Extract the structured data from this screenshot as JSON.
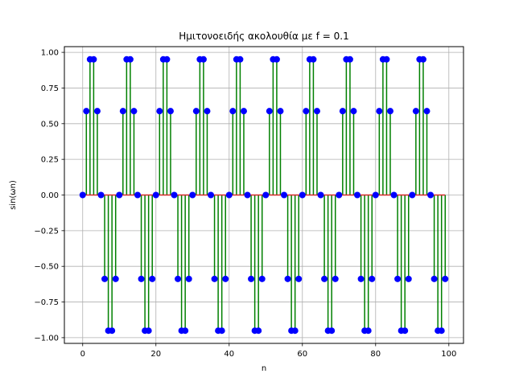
{
  "chart_data": {
    "type": "stem",
    "title": "Ημιτονοειδής ακολουθία με f = 0.1",
    "xlabel": "n",
    "ylabel": "sin(ωn)",
    "xlim": [
      -5,
      104
    ],
    "ylim": [
      -1.04,
      1.04
    ],
    "xticks": [
      0,
      20,
      40,
      60,
      80,
      100
    ],
    "xtick_labels": [
      "0",
      "20",
      "40",
      "60",
      "80",
      "100"
    ],
    "yticks": [
      -1.0,
      -0.75,
      -0.5,
      -0.25,
      0.0,
      0.25,
      0.5,
      0.75,
      1.0
    ],
    "ytick_labels": [
      "−1.00",
      "−0.75",
      "−0.50",
      "−0.25",
      "0.00",
      "0.25",
      "0.50",
      "0.75",
      "1.00"
    ],
    "grid": true,
    "frequency": 0.1,
    "n": [
      0,
      1,
      2,
      3,
      4,
      5,
      6,
      7,
      8,
      9,
      10,
      11,
      12,
      13,
      14,
      15,
      16,
      17,
      18,
      19,
      20,
      21,
      22,
      23,
      24,
      25,
      26,
      27,
      28,
      29,
      30,
      31,
      32,
      33,
      34,
      35,
      36,
      37,
      38,
      39,
      40,
      41,
      42,
      43,
      44,
      45,
      46,
      47,
      48,
      49,
      50,
      51,
      52,
      53,
      54,
      55,
      56,
      57,
      58,
      59,
      60,
      61,
      62,
      63,
      64,
      65,
      66,
      67,
      68,
      69,
      70,
      71,
      72,
      73,
      74,
      75,
      76,
      77,
      78,
      79,
      80,
      81,
      82,
      83,
      84,
      85,
      86,
      87,
      88,
      89,
      90,
      91,
      92,
      93,
      94,
      95,
      96,
      97,
      98,
      99
    ],
    "values": [
      0.0,
      0.588,
      0.951,
      0.951,
      0.588,
      0.0,
      -0.588,
      -0.951,
      -0.951,
      -0.588,
      0.0,
      0.588,
      0.951,
      0.951,
      0.588,
      0.0,
      -0.588,
      -0.951,
      -0.951,
      -0.588,
      0.0,
      0.588,
      0.951,
      0.951,
      0.588,
      0.0,
      -0.588,
      -0.951,
      -0.951,
      -0.588,
      0.0,
      0.588,
      0.951,
      0.951,
      0.588,
      0.0,
      -0.588,
      -0.951,
      -0.951,
      -0.588,
      0.0,
      0.588,
      0.951,
      0.951,
      0.588,
      0.0,
      -0.588,
      -0.951,
      -0.951,
      -0.588,
      0.0,
      0.588,
      0.951,
      0.951,
      0.588,
      0.0,
      -0.588,
      -0.951,
      -0.951,
      -0.588,
      0.0,
      0.588,
      0.951,
      0.951,
      0.588,
      0.0,
      -0.588,
      -0.951,
      -0.951,
      -0.588,
      0.0,
      0.588,
      0.951,
      0.951,
      0.588,
      0.0,
      -0.588,
      -0.951,
      -0.951,
      -0.588,
      0.0,
      0.588,
      0.951,
      0.951,
      0.588,
      0.0,
      -0.588,
      -0.951,
      -0.951,
      -0.588,
      0.0,
      0.588,
      0.951,
      0.951,
      0.588,
      0.0,
      -0.588,
      -0.951,
      -0.951,
      -0.588
    ],
    "colors": {
      "stem": "#008000",
      "marker": "#0000ff",
      "baseline": "#d62728",
      "grid": "#b0b0b0"
    }
  }
}
